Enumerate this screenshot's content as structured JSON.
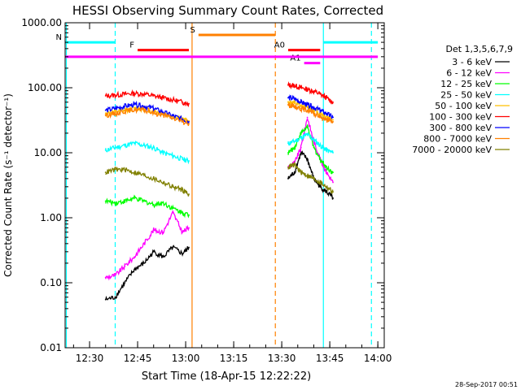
{
  "chart_data": {
    "type": "line",
    "title": "HESSI Observing Summary Count Rates, Corrected",
    "xlabel": "Start Time (18-Apr-15 12:22:22)",
    "ylabel": "Corrected Count Rate (s⁻¹ detector⁻¹)",
    "yscale": "log",
    "ylim": [
      0.01,
      1000
    ],
    "xlim": [
      "12:22:22",
      "14:02:00"
    ],
    "x_ticks": [
      "12:30",
      "12:45",
      "13:00",
      "13:15",
      "13:30",
      "13:45",
      "14:00"
    ],
    "y_ticks": [
      "1000.00",
      "100.00",
      "10.00",
      "1.00",
      "0.10",
      "0.01"
    ],
    "grid": false,
    "legend_position": "right",
    "legend_title": "Det 1,3,5,6,7,9",
    "series": [
      {
        "name": "3 - 6 keV",
        "color": "#000000",
        "x": [
          "12:35",
          "12:38",
          "12:41",
          "12:44",
          "12:47",
          "12:50",
          "12:53",
          "12:56",
          "12:59",
          "13:01"
        ],
        "y": [
          0.055,
          0.06,
          0.1,
          0.16,
          0.2,
          0.3,
          0.25,
          0.35,
          0.28,
          0.35
        ]
      },
      {
        "name": "6 - 12 keV",
        "color": "#ff00ff",
        "x": [
          "12:35",
          "12:38",
          "12:41",
          "12:44",
          "12:47",
          "12:50",
          "12:53",
          "12:56",
          "12:59",
          "13:01"
        ],
        "y": [
          0.12,
          0.13,
          0.18,
          0.25,
          0.4,
          0.65,
          0.6,
          1.2,
          0.6,
          0.7
        ]
      },
      {
        "name": "12 - 25 keV",
        "color": "#00ff00",
        "x": [
          "12:35",
          "12:38",
          "12:41",
          "12:44",
          "12:47",
          "12:50",
          "12:53",
          "12:56",
          "12:59",
          "13:01"
        ],
        "y": [
          1.8,
          1.7,
          1.8,
          2.0,
          1.8,
          1.6,
          1.7,
          1.4,
          1.2,
          1.1
        ]
      },
      {
        "name": "25 - 50 keV",
        "color": "#00ffff",
        "x": [
          "12:35",
          "12:38",
          "12:41",
          "12:44",
          "12:47",
          "12:50",
          "12:53",
          "12:56",
          "12:59",
          "13:01"
        ],
        "y": [
          11,
          12,
          13,
          14,
          13,
          12,
          10,
          9,
          8,
          7.5
        ]
      },
      {
        "name": "50 - 100 keV",
        "color": "#ffc000",
        "x": [
          "12:35",
          "12:38",
          "12:41",
          "12:44",
          "12:47",
          "12:50",
          "12:53",
          "12:56",
          "12:59",
          "13:01"
        ],
        "y": [
          40,
          42,
          45,
          48,
          47,
          43,
          40,
          36,
          33,
          31
        ]
      },
      {
        "name": "100 - 300 keV",
        "color": "#ff0000",
        "x": [
          "12:35",
          "12:38",
          "12:41",
          "12:44",
          "12:47",
          "12:50",
          "12:53",
          "12:56",
          "12:59",
          "13:01"
        ],
        "y": [
          75,
          77,
          80,
          82,
          80,
          75,
          70,
          65,
          60,
          57
        ]
      },
      {
        "name": "300 - 800 keV",
        "color": "#0000ff",
        "x": [
          "12:35",
          "12:38",
          "12:41",
          "12:44",
          "12:47",
          "12:50",
          "12:53",
          "12:56",
          "12:59",
          "13:01"
        ],
        "y": [
          45,
          48,
          52,
          55,
          52,
          48,
          42,
          37,
          33,
          30
        ]
      },
      {
        "name": "800 - 7000 keV",
        "color": "#ff8000",
        "x": [
          "12:35",
          "12:38",
          "12:41",
          "12:44",
          "12:47",
          "12:50",
          "12:53",
          "12:56",
          "12:59",
          "13:01"
        ],
        "y": [
          38,
          40,
          44,
          46,
          45,
          41,
          38,
          34,
          30,
          28
        ]
      },
      {
        "name": "7000 - 20000 keV",
        "color": "#808000",
        "x": [
          "12:35",
          "12:38",
          "12:41",
          "12:44",
          "12:47",
          "12:50",
          "12:53",
          "12:56",
          "12:59",
          "13:01"
        ],
        "y": [
          5,
          5.5,
          5.5,
          5,
          4.5,
          4,
          3.5,
          3,
          2.7,
          2.3
        ]
      }
    ],
    "series_b": [
      {
        "name": "3 - 6 keV",
        "x": [
          "13:32",
          "13:34",
          "13:36",
          "13:38",
          "13:40",
          "13:42",
          "13:44",
          "13:46"
        ],
        "y": [
          4,
          5,
          10,
          8,
          4,
          3,
          2.5,
          2
        ]
      },
      {
        "name": "6 - 12 keV",
        "x": [
          "13:32",
          "13:34",
          "13:36",
          "13:38",
          "13:40",
          "13:42",
          "13:44",
          "13:46"
        ],
        "y": [
          6,
          7,
          12,
          35,
          15,
          8,
          5,
          3.5
        ]
      },
      {
        "name": "12 - 25 keV",
        "x": [
          "13:32",
          "13:34",
          "13:36",
          "13:38",
          "13:40",
          "13:42",
          "13:44",
          "13:46"
        ],
        "y": [
          10,
          12,
          20,
          25,
          12,
          8,
          6,
          5
        ]
      },
      {
        "name": "25 - 50 keV",
        "x": [
          "13:32",
          "13:34",
          "13:36",
          "13:38",
          "13:40",
          "13:42",
          "13:44",
          "13:46"
        ],
        "y": [
          14,
          15,
          17,
          19,
          16,
          13,
          11,
          10
        ]
      },
      {
        "name": "50 - 100 keV",
        "x": [
          "13:32",
          "13:34",
          "13:36",
          "13:38",
          "13:40",
          "13:42",
          "13:44",
          "13:46"
        ],
        "y": [
          60,
          58,
          52,
          50,
          45,
          40,
          36,
          32
        ]
      },
      {
        "name": "100 - 300 keV",
        "x": [
          "13:32",
          "13:34",
          "13:36",
          "13:38",
          "13:40",
          "13:42",
          "13:44",
          "13:46"
        ],
        "y": [
          110,
          108,
          100,
          95,
          88,
          80,
          70,
          60
        ]
      },
      {
        "name": "300 - 800 keV",
        "x": [
          "13:32",
          "13:34",
          "13:36",
          "13:38",
          "13:40",
          "13:42",
          "13:44",
          "13:46"
        ],
        "y": [
          70,
          68,
          60,
          55,
          50,
          45,
          40,
          35
        ]
      },
      {
        "name": "800 - 7000 keV",
        "x": [
          "13:32",
          "13:34",
          "13:36",
          "13:38",
          "13:40",
          "13:42",
          "13:44",
          "13:46"
        ],
        "y": [
          55,
          52,
          48,
          45,
          40,
          36,
          32,
          30
        ]
      },
      {
        "name": "7000 - 20000 keV",
        "x": [
          "13:32",
          "13:34",
          "13:36",
          "13:38",
          "13:40",
          "13:42",
          "13:44",
          "13:46"
        ],
        "y": [
          6,
          6.5,
          5,
          4.5,
          4,
          3.5,
          3,
          2.5
        ]
      }
    ],
    "flag_bars": [
      {
        "label": "N",
        "color": "#00ffff",
        "value": 500,
        "segments": [
          [
            "12:22:22",
            "12:38"
          ],
          [
            "13:43",
            "14:00"
          ]
        ]
      },
      {
        "label": "F",
        "color": "#ff0000",
        "value": 380,
        "segments": [
          [
            "12:45",
            "13:01"
          ]
        ]
      },
      {
        "label": "S",
        "color": "#ff8000",
        "value": 650,
        "segments": [
          [
            "13:04",
            "13:28"
          ]
        ]
      },
      {
        "label": "A0",
        "color": "#ff0000",
        "value": 380,
        "segments": [
          [
            "13:32",
            "13:42"
          ]
        ]
      },
      {
        "label": "A1",
        "color": "#ff00ff",
        "value": 240,
        "segments": [
          [
            "13:37",
            "13:42"
          ]
        ]
      },
      {
        "label": "",
        "color": "#ff00ff",
        "value": 300,
        "segments": [
          [
            "12:22:22",
            "14:00"
          ]
        ]
      }
    ],
    "vertical_markers": [
      {
        "x": "12:22:45",
        "color": "#00ffff",
        "style": "solid"
      },
      {
        "x": "12:38",
        "color": "#00ffff",
        "style": "dashed"
      },
      {
        "x": "13:02",
        "color": "#ff8000",
        "style": "solid"
      },
      {
        "x": "13:28",
        "color": "#ff8000",
        "style": "dashed"
      },
      {
        "x": "13:43",
        "color": "#00ffff",
        "style": "solid"
      },
      {
        "x": "13:58",
        "color": "#00ffff",
        "style": "dashed"
      }
    ]
  },
  "footer": {
    "timestamp": "28-Sep-2017 00:51"
  }
}
